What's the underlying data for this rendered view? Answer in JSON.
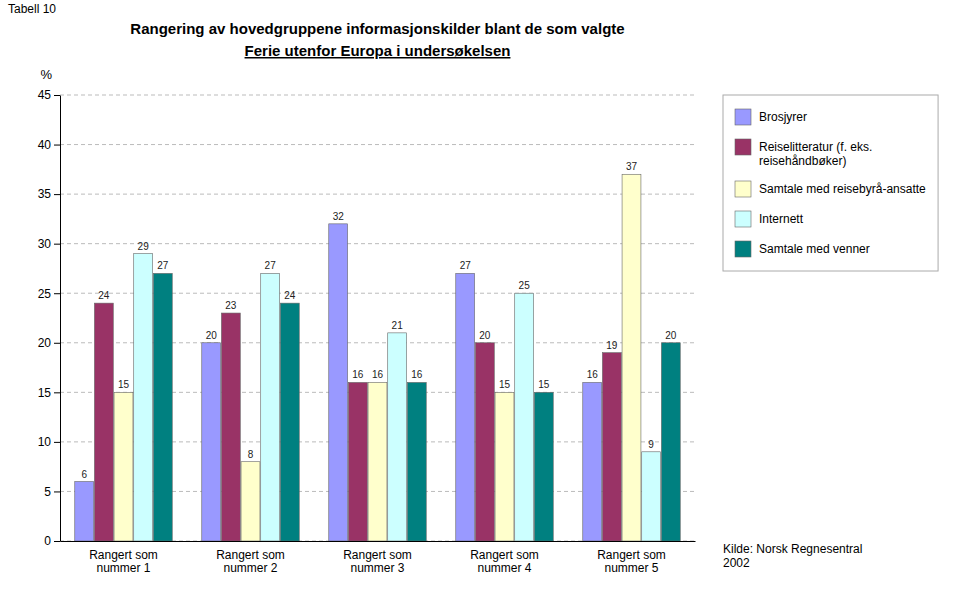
{
  "chart_data": {
    "type": "bar",
    "title": "Rangering av hovedgruppene informasjonskilder blant de som valgte",
    "subtitle": "Ferie utenfor Europa i undersøkelsen",
    "ylabel": "%",
    "annotations": [
      "Tabell 10",
      "Kilde: Norsk Regnesentral\n2002"
    ],
    "categories": [
      "Rangert som\nnummer 1",
      "Rangert som\nnummer 2",
      "Rangert som\nnummer 3",
      "Rangert som\nnummer 4",
      "Rangert som\nnummer 5"
    ],
    "series": [
      {
        "name": "Brosjyrer",
        "color": "#9999FF",
        "values": [
          6,
          20,
          32,
          27,
          16
        ]
      },
      {
        "name": "Reiselitteratur (f. eks.\nreisehåndbøker)",
        "color": "#993366",
        "values": [
          24,
          23,
          16,
          20,
          19
        ]
      },
      {
        "name": "Samtale med reisebyrå-ansatte",
        "color": "#FFFFCC",
        "values": [
          15,
          8,
          16,
          15,
          37
        ]
      },
      {
        "name": "Internett",
        "color": "#CCFFFF",
        "values": [
          29,
          27,
          21,
          25,
          9
        ]
      },
      {
        "name": "Samtale med venner",
        "color": "#008080",
        "values": [
          27,
          24,
          16,
          15,
          20
        ]
      }
    ],
    "ylim": [
      0,
      45
    ],
    "yticks": [
      0,
      5,
      10,
      15,
      20,
      25,
      30,
      35,
      40,
      45
    ],
    "grid": true,
    "legend": "right",
    "data_labels": true
  }
}
